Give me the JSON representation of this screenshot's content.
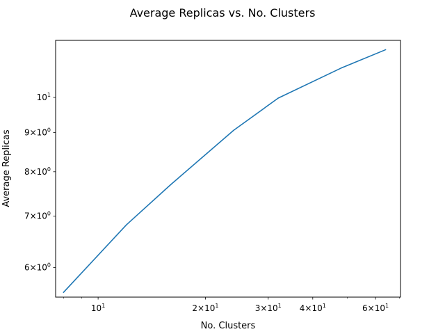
{
  "chart_data": {
    "type": "line",
    "title": "Average Replicas vs. No. Clusters",
    "xlabel": "No. Clusters",
    "ylabel": "Average Replicas",
    "xscale": "log",
    "yscale": "log",
    "xlim": [
      7.6,
      70.5
    ],
    "ylim": [
      5.49,
      11.87
    ],
    "grid": false,
    "series": [
      {
        "color": "#1f77b4",
        "x": [
          8,
          12,
          16,
          24,
          32,
          48,
          64
        ],
        "y": [
          5.57,
          6.82,
          7.7,
          9.06,
          9.98,
          10.92,
          11.54
        ]
      }
    ],
    "x_ticks": [
      {
        "value": 10,
        "mant": "",
        "base": "10",
        "exp": "1"
      },
      {
        "value": 20,
        "mant": "2×",
        "base": "10",
        "exp": "1"
      },
      {
        "value": 30,
        "mant": "3×",
        "base": "10",
        "exp": "1"
      },
      {
        "value": 40,
        "mant": "4×",
        "base": "10",
        "exp": "1"
      },
      {
        "value": 60,
        "mant": "6×",
        "base": "10",
        "exp": "1"
      }
    ],
    "x_minor_ticks": [
      8,
      9,
      50,
      70
    ],
    "y_ticks": [
      {
        "value": 6,
        "mant": "6×",
        "base": "10",
        "exp": "0"
      },
      {
        "value": 7,
        "mant": "7×",
        "base": "10",
        "exp": "0"
      },
      {
        "value": 8,
        "mant": "8×",
        "base": "10",
        "exp": "0"
      },
      {
        "value": 9,
        "mant": "9×",
        "base": "10",
        "exp": "0"
      },
      {
        "value": 10,
        "mant": "",
        "base": "10",
        "exp": "1"
      }
    ]
  }
}
